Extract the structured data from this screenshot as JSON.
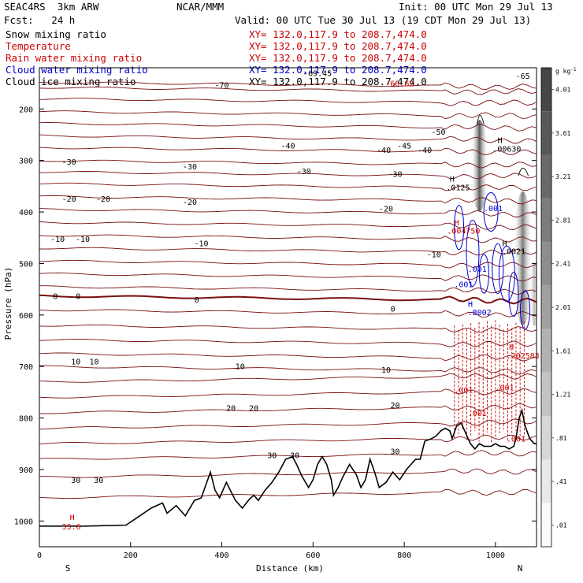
{
  "header": {
    "model": "SEAC4RS  3km ARW",
    "center": "NCAR/MMM",
    "init": "Init: 00 UTC Mon 29 Jul 13",
    "fcst": "Fcst:   24 h",
    "valid": "Valid: 00 UTC Tue 30 Jul 13 (19 CDT Mon 29 Jul 13)"
  },
  "fields": [
    {
      "name": "Snow mixing ratio",
      "xy": "XY= 132.0,117.9 to 208.7,474.0",
      "color": "#000000"
    },
    {
      "name": "Temperature",
      "xy": "XY= 132.0,117.9 to 208.7,474.0",
      "color": "#cc0000"
    },
    {
      "name": "Rain water mixing ratio",
      "xy": "XY= 132.0,117.9 to 208.7,474.0",
      "color": "#cc0000"
    },
    {
      "name": "Cloud water mixing ratio",
      "xy": "XY= 132.0,117.9 to 208.7,474.0",
      "color": "#0000cc"
    },
    {
      "name": "Cloud ice mixing ratio",
      "xy": "XY= 132.0,117.9 to 208.7,474.0",
      "color": "#000000"
    }
  ],
  "chart_data": {
    "type": "cross-section",
    "ylabel": "Pressure (hPa)",
    "xlabel": "Distance (km)",
    "xlim": [
      0,
      1090
    ],
    "ylim": [
      1050,
      120
    ],
    "x_ticks": [
      0,
      200,
      400,
      600,
      800,
      1000
    ],
    "y_ticks": [
      200,
      300,
      400,
      500,
      600,
      700,
      800,
      900,
      1000
    ],
    "endpoint_labels": {
      "left": "S",
      "right": "N"
    },
    "colorbar": {
      "unit": "g kg",
      "unit_exp": "-1",
      "levels": [
        "4.01",
        "3.61",
        "3.21",
        "2.81",
        "2.41",
        "2.01",
        "1.61",
        "1.21",
        ".81",
        ".41",
        ".01"
      ]
    },
    "temperature_labels": [
      {
        "x": 400,
        "p": 153,
        "text": "-70"
      },
      {
        "x": 610,
        "p": 130,
        "text": "-69.45"
      },
      {
        "x": 1060,
        "p": 135,
        "text": "-65"
      },
      {
        "x": 875,
        "p": 244,
        "text": "-50"
      },
      {
        "x": 800,
        "p": 271,
        "text": "-45"
      },
      {
        "x": 545,
        "p": 271,
        "text": "-40"
      },
      {
        "x": 755,
        "p": 279,
        "text": "-40"
      },
      {
        "x": 845,
        "p": 279,
        "text": "-40"
      },
      {
        "x": 65,
        "p": 302,
        "text": "-30"
      },
      {
        "x": 330,
        "p": 311,
        "text": "-30"
      },
      {
        "x": 580,
        "p": 320,
        "text": "-30"
      },
      {
        "x": 780,
        "p": 326,
        "text": "-30"
      },
      {
        "x": 65,
        "p": 374,
        "text": "-20"
      },
      {
        "x": 140,
        "p": 374,
        "text": "-20"
      },
      {
        "x": 330,
        "p": 380,
        "text": "-20"
      },
      {
        "x": 760,
        "p": 393,
        "text": "-20"
      },
      {
        "x": 40,
        "p": 452,
        "text": "-10"
      },
      {
        "x": 95,
        "p": 452,
        "text": "-10"
      },
      {
        "x": 355,
        "p": 460,
        "text": "-10"
      },
      {
        "x": 865,
        "p": 482,
        "text": "-10"
      },
      {
        "x": 35,
        "p": 563,
        "text": "0"
      },
      {
        "x": 85,
        "p": 563,
        "text": "0"
      },
      {
        "x": 345,
        "p": 570,
        "text": "0"
      },
      {
        "x": 775,
        "p": 587,
        "text": "0"
      },
      {
        "x": 80,
        "p": 690,
        "text": "10"
      },
      {
        "x": 120,
        "p": 690,
        "text": "10"
      },
      {
        "x": 440,
        "p": 699,
        "text": "10"
      },
      {
        "x": 760,
        "p": 706,
        "text": "10"
      },
      {
        "x": 420,
        "p": 780,
        "text": "20"
      },
      {
        "x": 470,
        "p": 780,
        "text": "20"
      },
      {
        "x": 780,
        "p": 775,
        "text": "20"
      },
      {
        "x": 510,
        "p": 872,
        "text": "30"
      },
      {
        "x": 560,
        "p": 872,
        "text": "30"
      },
      {
        "x": 780,
        "p": 864,
        "text": "30"
      },
      {
        "x": 80,
        "p": 920,
        "text": "30"
      },
      {
        "x": 130,
        "p": 920,
        "text": "30"
      }
    ],
    "annotations": [
      {
        "x": 70,
        "p": 1010,
        "text": "33.6",
        "color": "#cc0000"
      },
      {
        "x": 72,
        "p": 992,
        "text": "H",
        "color": "#cc0000"
      },
      {
        "x": 790,
        "p": 150,
        "text": "-66.62",
        "color": "#cc0000"
      },
      {
        "x": 1010,
        "p": 260,
        "text": "H",
        "color": "#000000"
      },
      {
        "x": 1025,
        "p": 277,
        "text": ".00630",
        "color": "#000000"
      },
      {
        "x": 905,
        "p": 335,
        "text": "H",
        "color": "#000000"
      },
      {
        "x": 918,
        "p": 352,
        "text": ".0125",
        "color": "#000000"
      },
      {
        "x": 915,
        "p": 420,
        "text": "H",
        "color": "#cc0000"
      },
      {
        "x": 930,
        "p": 436,
        "text": ".004750",
        "color": "#cc0000"
      },
      {
        "x": 995,
        "p": 392,
        "text": ".001",
        "color": "#0000cc"
      },
      {
        "x": 960,
        "p": 510,
        "text": ".001",
        "color": "#0000cc"
      },
      {
        "x": 930,
        "p": 540,
        "text": ".001",
        "color": "#0000cc"
      },
      {
        "x": 945,
        "p": 578,
        "text": "H",
        "color": "#0000cc"
      },
      {
        "x": 965,
        "p": 594,
        "text": ".8002",
        "color": "#0000cc"
      },
      {
        "x": 1020,
        "p": 460,
        "text": "H",
        "color": "#000000"
      },
      {
        "x": 1040,
        "p": 476,
        "text": ".0021",
        "color": "#000000"
      },
      {
        "x": 1035,
        "p": 661,
        "text": "H",
        "color": "#cc0000"
      },
      {
        "x": 1060,
        "p": 678,
        "text": ".202583",
        "color": "#cc0000"
      },
      {
        "x": 1020,
        "p": 740,
        "text": ".001",
        "color": "#cc0000"
      },
      {
        "x": 930,
        "p": 745,
        "text": ".001",
        "color": "#cc0000"
      },
      {
        "x": 960,
        "p": 790,
        "text": ".001",
        "color": "#cc0000"
      },
      {
        "x": 1045,
        "p": 840,
        "text": ".001",
        "color": "#cc0000"
      }
    ],
    "terrain": [
      [
        0,
        1010
      ],
      [
        100,
        1010
      ],
      [
        190,
        1008
      ],
      [
        220,
        990
      ],
      [
        245,
        975
      ],
      [
        270,
        965
      ],
      [
        280,
        985
      ],
      [
        300,
        970
      ],
      [
        320,
        990
      ],
      [
        340,
        960
      ],
      [
        355,
        955
      ],
      [
        365,
        930
      ],
      [
        375,
        905
      ],
      [
        385,
        940
      ],
      [
        395,
        955
      ],
      [
        410,
        925
      ],
      [
        430,
        960
      ],
      [
        445,
        975
      ],
      [
        460,
        958
      ],
      [
        470,
        950
      ],
      [
        480,
        960
      ],
      [
        495,
        940
      ],
      [
        510,
        925
      ],
      [
        525,
        905
      ],
      [
        540,
        880
      ],
      [
        555,
        875
      ],
      [
        565,
        892
      ],
      [
        575,
        912
      ],
      [
        590,
        935
      ],
      [
        600,
        920
      ],
      [
        610,
        890
      ],
      [
        620,
        875
      ],
      [
        630,
        890
      ],
      [
        640,
        920
      ],
      [
        645,
        950
      ],
      [
        655,
        935
      ],
      [
        665,
        915
      ],
      [
        680,
        890
      ],
      [
        695,
        910
      ],
      [
        705,
        935
      ],
      [
        715,
        920
      ],
      [
        725,
        880
      ],
      [
        735,
        905
      ],
      [
        745,
        935
      ],
      [
        760,
        925
      ],
      [
        775,
        905
      ],
      [
        790,
        920
      ],
      [
        805,
        900
      ],
      [
        815,
        890
      ],
      [
        825,
        880
      ],
      [
        835,
        880
      ],
      [
        845,
        845
      ],
      [
        860,
        840
      ],
      [
        870,
        835
      ],
      [
        880,
        825
      ],
      [
        890,
        820
      ],
      [
        900,
        825
      ],
      [
        905,
        840
      ],
      [
        915,
        815
      ],
      [
        925,
        810
      ],
      [
        935,
        830
      ],
      [
        945,
        850
      ],
      [
        955,
        860
      ],
      [
        965,
        850
      ],
      [
        975,
        855
      ],
      [
        990,
        855
      ],
      [
        1000,
        850
      ],
      [
        1010,
        855
      ],
      [
        1020,
        855
      ],
      [
        1030,
        860
      ],
      [
        1040,
        855
      ],
      [
        1045,
        840
      ],
      [
        1052,
        800
      ],
      [
        1058,
        785
      ],
      [
        1065,
        815
      ],
      [
        1075,
        840
      ],
      [
        1085,
        850
      ],
      [
        1090,
        850
      ]
    ]
  }
}
